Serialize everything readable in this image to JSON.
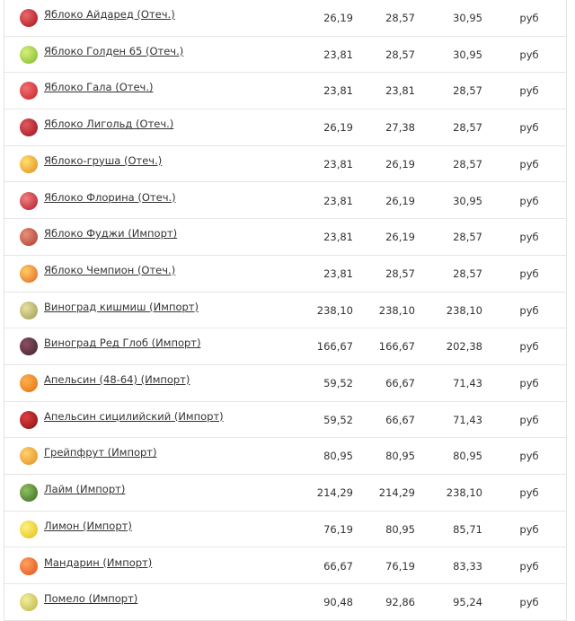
{
  "table": {
    "rows": [
      [
        "Яблоко Айдаред (Отеч.)",
        "26,19",
        "28,57",
        "30,95",
        "руб"
      ],
      [
        "Яблоко Голден 65 (Отеч.)",
        "23,81",
        "28,57",
        "30,95",
        "руб"
      ],
      [
        "Яблоко Гала (Отеч.)",
        "23,81",
        "23,81",
        "28,57",
        "руб"
      ],
      [
        "Яблоко Лигольд (Отеч.)",
        "26,19",
        "27,38",
        "28,57",
        "руб"
      ],
      [
        "Яблоко-груша (Отеч.)",
        "23,81",
        "26,19",
        "28,57",
        "руб"
      ],
      [
        "Яблоко Флорина (Отеч.)",
        "23,81",
        "26,19",
        "30,95",
        "руб"
      ],
      [
        "Яблоко Фуджи (Импорт)",
        "23,81",
        "26,19",
        "28,57",
        "руб"
      ],
      [
        "Яблоко Чемпион (Отеч.)",
        "23,81",
        "28,57",
        "28,57",
        "руб"
      ],
      [
        "Виноград кишмиш (Импорт)",
        "238,10",
        "238,10",
        "238,10",
        "руб"
      ],
      [
        "Виноград Ред Глоб (Импорт)",
        "166,67",
        "166,67",
        "202,38",
        "руб"
      ],
      [
        "Апельсин (48-64) (Импорт)",
        "59,52",
        "66,67",
        "71,43",
        "руб"
      ],
      [
        "Апельсин сицилийский (Импорт)",
        "59,52",
        "66,67",
        "71,43",
        "руб"
      ],
      [
        "Грейпфрут (Импорт)",
        "80,95",
        "80,95",
        "80,95",
        "руб"
      ],
      [
        "Лайм (Импорт)",
        "214,29",
        "214,29",
        "238,10",
        "руб"
      ],
      [
        "Лимон (Импорт)",
        "76,19",
        "80,95",
        "85,71",
        "руб"
      ],
      [
        "Мандарин (Импорт)",
        "66,67",
        "76,19",
        "83,33",
        "руб"
      ],
      [
        "Помело (Импорт)",
        "90,48",
        "92,86",
        "95,24",
        "руб"
      ]
    ]
  }
}
